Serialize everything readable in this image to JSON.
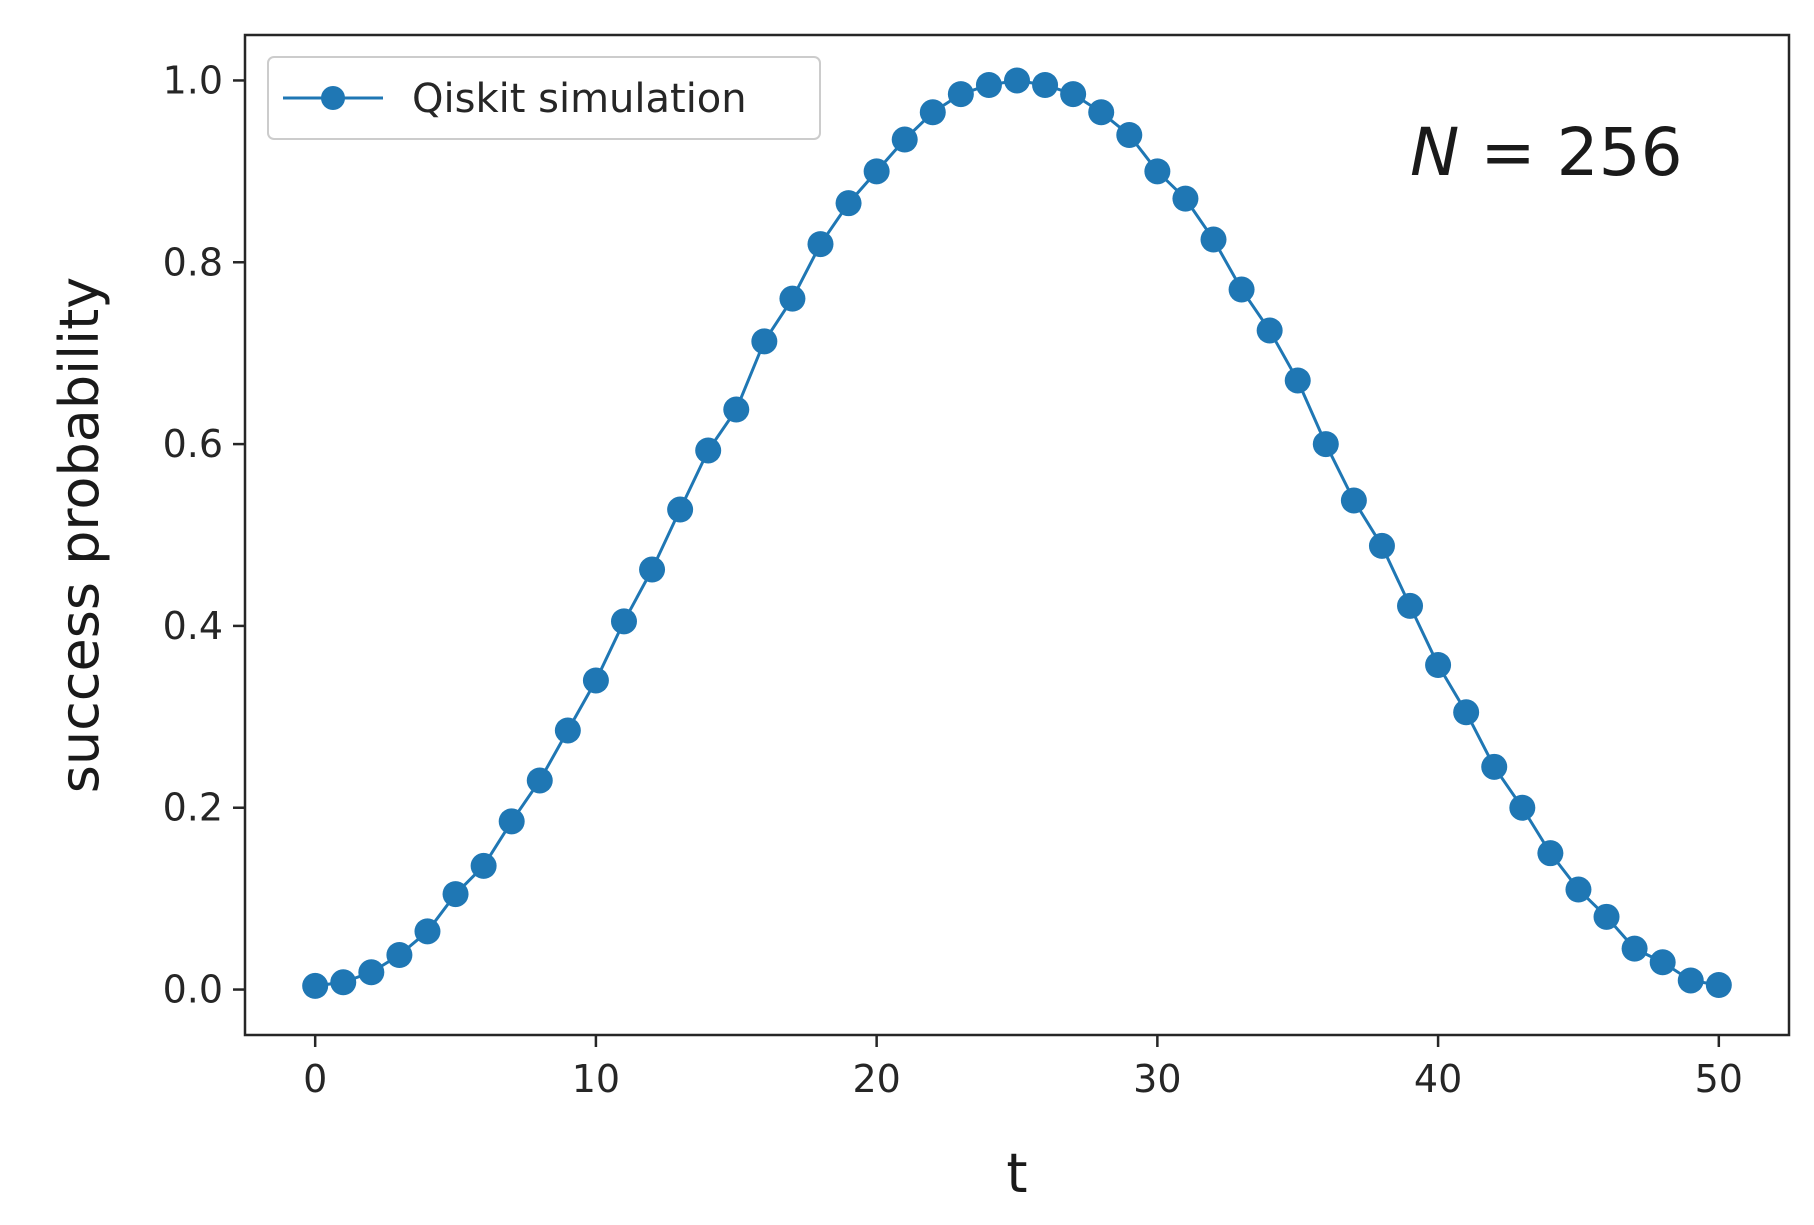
{
  "chart_data": {
    "type": "line",
    "xlabel": "t",
    "ylabel": "success probability",
    "xlim": [
      -2.5,
      52.5
    ],
    "ylim": [
      -0.05,
      1.05
    ],
    "xticks": [
      0,
      10,
      20,
      30,
      40,
      50
    ],
    "xtick_labels": [
      "0",
      "10",
      "20",
      "30",
      "40",
      "50"
    ],
    "yticks": [
      0.0,
      0.2,
      0.4,
      0.6,
      0.8,
      1.0
    ],
    "ytick_labels": [
      "0.0",
      "0.2",
      "0.4",
      "0.6",
      "0.8",
      "1.0"
    ],
    "grid": false,
    "legend": {
      "position": "top-left",
      "entries": [
        "Qiskit simulation"
      ]
    },
    "annotation": {
      "text_main": "N",
      "text_rest": " = 256",
      "position": "top-right"
    },
    "colors": {
      "series": "#1f77b4",
      "axes": "#262626"
    },
    "series": [
      {
        "name": "Qiskit simulation",
        "marker": "circle",
        "x": [
          0,
          1,
          2,
          3,
          4,
          5,
          6,
          7,
          8,
          9,
          10,
          11,
          12,
          13,
          14,
          15,
          16,
          17,
          18,
          19,
          20,
          21,
          22,
          23,
          24,
          25,
          26,
          27,
          28,
          29,
          30,
          31,
          32,
          33,
          34,
          35,
          36,
          37,
          38,
          39,
          40,
          41,
          42,
          43,
          44,
          45,
          46,
          47,
          48,
          49,
          50
        ],
        "y": [
          0.004,
          0.008,
          0.019,
          0.038,
          0.064,
          0.105,
          0.136,
          0.185,
          0.23,
          0.285,
          0.34,
          0.405,
          0.462,
          0.528,
          0.593,
          0.638,
          0.713,
          0.76,
          0.82,
          0.865,
          0.9,
          0.935,
          0.965,
          0.985,
          0.995,
          1.0,
          0.995,
          0.985,
          0.965,
          0.94,
          0.9,
          0.87,
          0.825,
          0.77,
          0.725,
          0.67,
          0.6,
          0.538,
          0.488,
          0.422,
          0.357,
          0.305,
          0.245,
          0.2,
          0.15,
          0.11,
          0.08,
          0.045,
          0.03,
          0.01,
          0.005
        ]
      }
    ]
  }
}
